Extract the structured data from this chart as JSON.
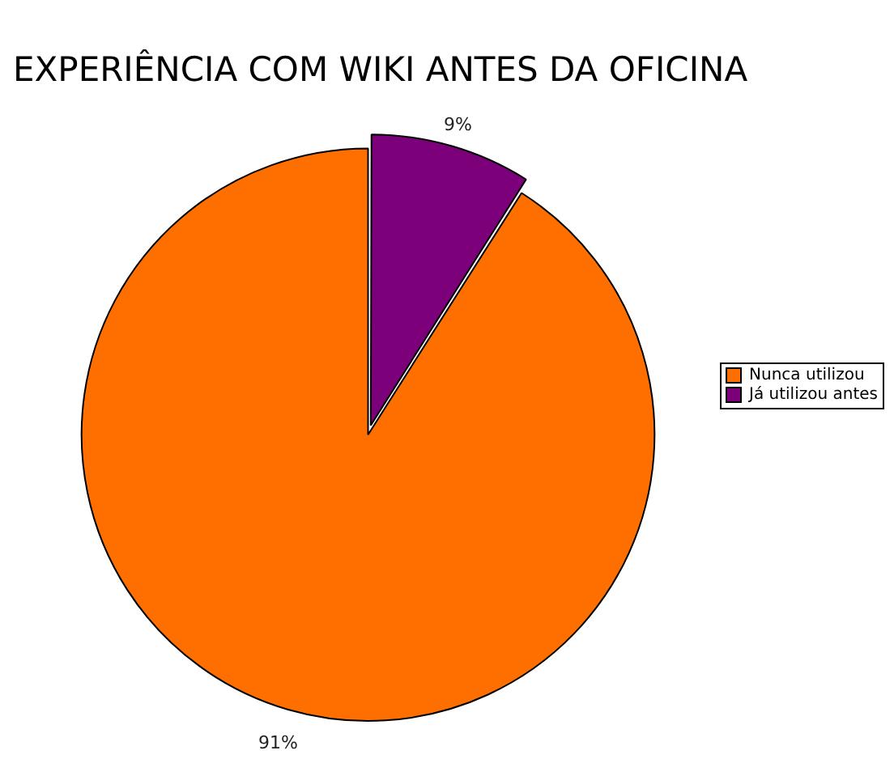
{
  "chart_data": {
    "type": "pie",
    "title": "EXPERIÊNCIA COM WIKI ANTES DA OFICINA",
    "categories": [
      "Nunca utilizou",
      "Já utilizou antes"
    ],
    "values": [
      91,
      9
    ],
    "colors": [
      "#ff6f00",
      "#7b0079"
    ],
    "value_labels": [
      "91%",
      "9%"
    ],
    "legend": "right"
  }
}
